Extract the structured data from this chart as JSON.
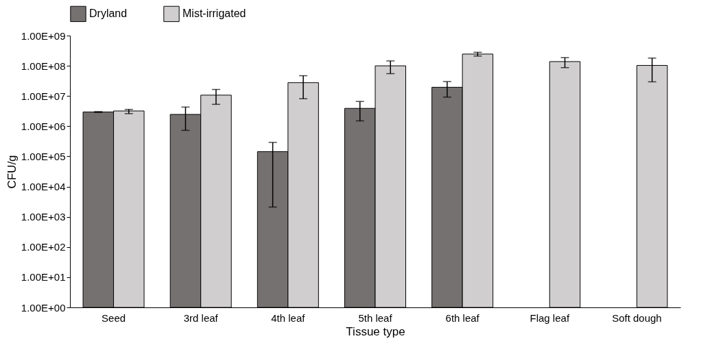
{
  "chart_data": {
    "type": "bar",
    "xlabel": "Tissue type",
    "ylabel": "CFU/g",
    "log": true,
    "grid": false,
    "legend": "top",
    "categories": [
      "Seed",
      "3rd leaf",
      "4th leaf",
      "5th leaf",
      "6th leaf",
      "Flag leaf",
      "Soft dough"
    ],
    "series": [
      {
        "name": "Dryland",
        "color": "#767171",
        "values": [
          2950000,
          2460000,
          144000,
          3900000,
          19500000,
          null,
          null
        ],
        "errors": [
          [
            2850000,
            3050000
          ],
          [
            730000,
            4300000
          ],
          [
            2100,
            290000
          ],
          [
            1500000,
            6600000
          ],
          [
            9200000,
            30000000
          ],
          null,
          null
        ]
      },
      {
        "name": "Mist-irrigated",
        "color": "#d0cece",
        "values": [
          3200000,
          10700000,
          27700000,
          100000000,
          245000000,
          138000000,
          103000000
        ],
        "errors": [
          [
            2600000,
            3600000
          ],
          [
            5300000,
            16500000
          ],
          [
            8100000,
            47000000
          ],
          [
            55000000,
            145000000
          ],
          [
            210000000,
            280000000
          ],
          [
            87000000,
            186000000
          ],
          [
            29500000,
            180000000
          ]
        ]
      }
    ],
    "ylim": [
      1,
      1000000000
    ],
    "yticks": [
      {
        "value": 1,
        "label": "1.00E+00"
      },
      {
        "value": 10,
        "label": "1.00E+01"
      },
      {
        "value": 100,
        "label": "1.00E+02"
      },
      {
        "value": 1000,
        "label": "1.00E+03"
      },
      {
        "value": 10000,
        "label": "1.00E+04"
      },
      {
        "value": 100000,
        "label": "1.00E+05"
      },
      {
        "value": 1000000,
        "label": "1.00E+06"
      },
      {
        "value": 10000000,
        "label": "1.00E+07"
      },
      {
        "value": 100000000,
        "label": "1.00E+08"
      },
      {
        "value": 1000000000,
        "label": "1.00E+09"
      }
    ]
  }
}
